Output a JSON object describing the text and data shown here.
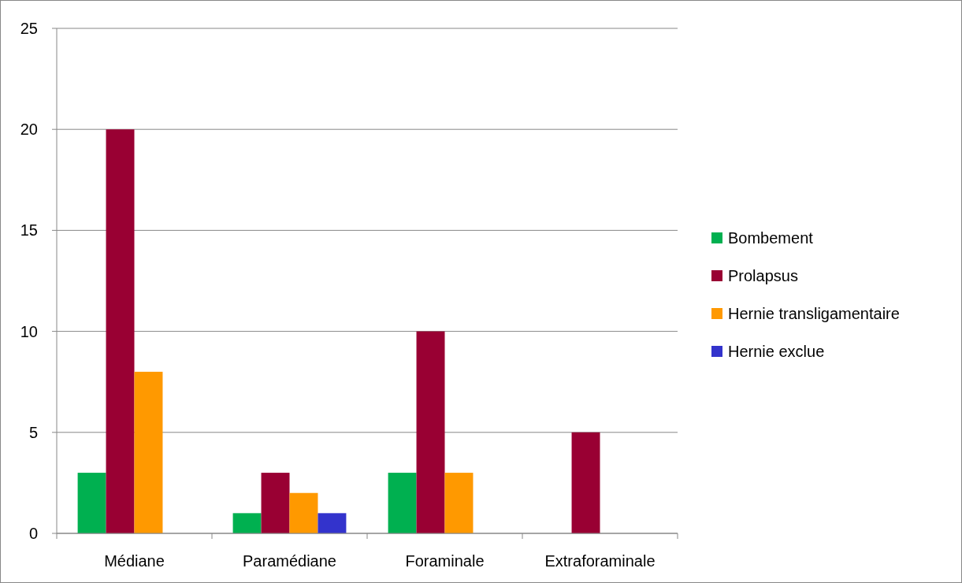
{
  "chart_data": {
    "type": "bar",
    "categories": [
      "Médiane",
      "Paramédiane",
      "Foraminale",
      "Extraforaminale"
    ],
    "series": [
      {
        "name": "Bombement",
        "color": "#00b050",
        "values": [
          3,
          1,
          3,
          0
        ]
      },
      {
        "name": "Prolapsus",
        "color": "#990033",
        "values": [
          20,
          3,
          10,
          5
        ]
      },
      {
        "name": "Hernie transligamentaire",
        "color": "#ff9900",
        "values": [
          8,
          2,
          3,
          0
        ]
      },
      {
        "name": "Hernie exclue",
        "color": "#3333cc",
        "values": [
          0,
          1,
          0,
          0
        ]
      }
    ],
    "ylim": [
      0,
      25
    ],
    "yticks": [
      0,
      5,
      10,
      15,
      20,
      25
    ],
    "grid": "y",
    "legend": "right"
  }
}
